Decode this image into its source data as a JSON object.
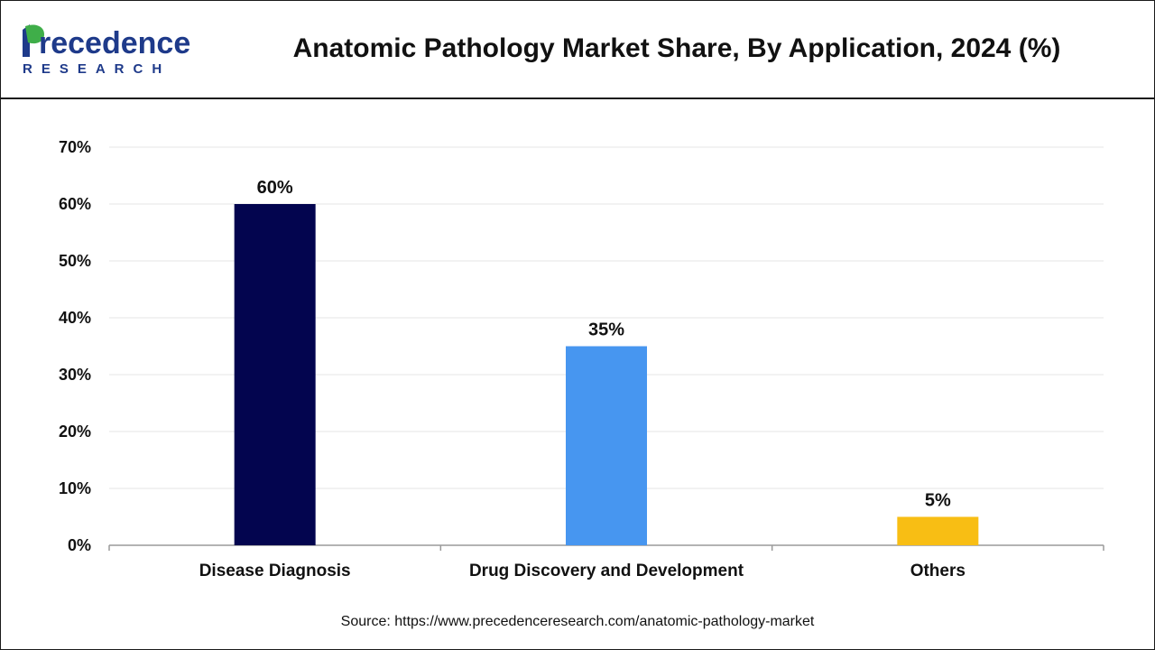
{
  "header": {
    "logo_word": "Precedence",
    "logo_sub": "RESEARCH",
    "title": "Anatomic Pathology Market Share, By Application, 2024 (%)"
  },
  "chart_data": {
    "type": "bar",
    "title": "Anatomic Pathology Market Share, By Application, 2024 (%)",
    "xlabel": "",
    "ylabel": "",
    "categories": [
      "Disease Diagnosis",
      "Drug Discovery and Development",
      "Others"
    ],
    "values": [
      60,
      35,
      5
    ],
    "value_labels": [
      "60%",
      "35%",
      "5%"
    ],
    "colors": [
      "#03054f",
      "#4796f0",
      "#f8be14"
    ],
    "ylim": [
      0,
      70
    ],
    "yticks": [
      0,
      10,
      20,
      30,
      40,
      50,
      60,
      70
    ],
    "ytick_labels": [
      "0%",
      "10%",
      "20%",
      "30%",
      "40%",
      "50%",
      "60%",
      "70%"
    ],
    "grid": true,
    "legend": "none"
  },
  "footer": {
    "source": "Source: https://www.precedenceresearch.com/anatomic-pathology-market"
  },
  "colors": {
    "brand_blue": "#1e3a8a",
    "brand_green": "#3fae49"
  }
}
